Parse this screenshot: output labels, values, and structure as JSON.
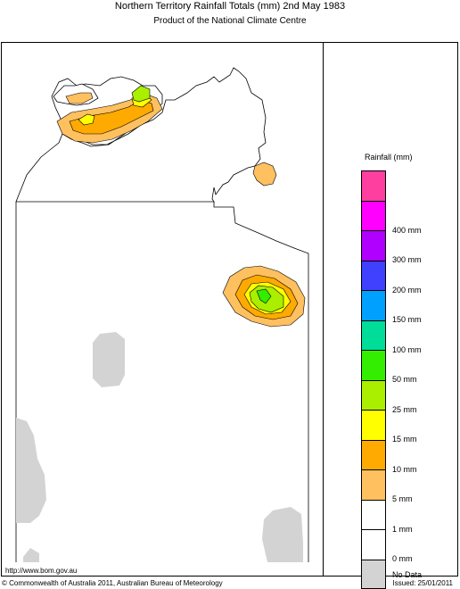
{
  "header": {
    "title": "Northern Territory Rainfall Totals (mm) 2nd May 1983",
    "subtitle": "Product of the National Climate Centre"
  },
  "legend": {
    "title": "Rainfall (mm)",
    "classes": [
      {
        "color": "#ff3f9f",
        "label": ""
      },
      {
        "color": "#ff00ff",
        "label": "400 mm"
      },
      {
        "color": "#b000ff",
        "label": "300 mm"
      },
      {
        "color": "#4040ff",
        "label": "200 mm"
      },
      {
        "color": "#00a0ff",
        "label": "150 mm"
      },
      {
        "color": "#00dd99",
        "label": "100 mm"
      },
      {
        "color": "#33ee00",
        "label": "50 mm"
      },
      {
        "color": "#aaee00",
        "label": "25 mm"
      },
      {
        "color": "#ffff00",
        "label": "15 mm"
      },
      {
        "color": "#ffaa00",
        "label": "10 mm"
      },
      {
        "color": "#ffc060",
        "label": "5 mm"
      },
      {
        "color": "#ffffff",
        "label": "1 mm"
      },
      {
        "color": "#ffffff",
        "label": "0 mm"
      },
      {
        "color": "#d3d3d3",
        "label": "No Data"
      }
    ]
  },
  "footer": {
    "url": "http://www.bom.gov.au",
    "copyright": "© Commonwealth of Australia 2011, Australian Bureau of Meteorology",
    "issued": "Issued: 25/01/2011"
  }
}
